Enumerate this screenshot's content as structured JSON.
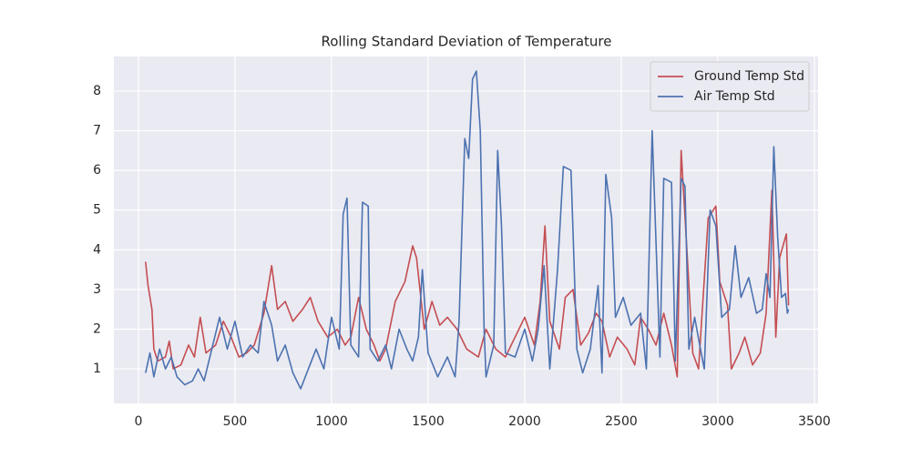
{
  "chart_data": {
    "type": "line",
    "title": "Rolling Standard Deviation of Temperature",
    "xlim": [
      -127,
      3519
    ],
    "xticks": [
      0,
      500,
      1000,
      1500,
      2000,
      2500,
      3000,
      3500
    ],
    "ylim": [
      0.13,
      8.87
    ],
    "yticks": [
      1,
      2,
      3,
      4,
      5,
      6,
      7,
      8
    ],
    "grid": true,
    "legend": "upper right",
    "series": [
      {
        "name": "Ground Temp Std",
        "color": "#c44e52",
        "x": [
          37,
          50,
          70,
          80,
          100,
          140,
          160,
          180,
          220,
          260,
          290,
          320,
          350,
          400,
          440,
          480,
          520,
          560,
          600,
          650,
          690,
          720,
          760,
          800,
          850,
          890,
          930,
          980,
          1030,
          1070,
          1100,
          1140,
          1180,
          1220,
          1250,
          1280,
          1330,
          1380,
          1420,
          1440,
          1480,
          1520,
          1560,
          1600,
          1650,
          1700,
          1760,
          1800,
          1850,
          1900,
          1950,
          2000,
          2050,
          2080,
          2105,
          2130,
          2180,
          2210,
          2250,
          2290,
          2330,
          2370,
          2400,
          2440,
          2480,
          2530,
          2570,
          2600,
          2640,
          2680,
          2720,
          2760,
          2790,
          2810,
          2840,
          2870,
          2900,
          2950,
          2990,
          3010,
          3050,
          3070,
          3110,
          3140,
          3180,
          3220,
          3250,
          3280,
          3300,
          3320,
          3355,
          3366
        ],
        "values": [
          3.7,
          3.1,
          2.5,
          1.5,
          1.2,
          1.3,
          1.7,
          1.0,
          1.1,
          1.6,
          1.3,
          2.3,
          1.4,
          1.6,
          2.2,
          1.8,
          1.3,
          1.4,
          1.6,
          2.4,
          3.6,
          2.5,
          2.7,
          2.2,
          2.5,
          2.8,
          2.2,
          1.8,
          2.0,
          1.6,
          1.8,
          2.8,
          2.0,
          1.6,
          1.2,
          1.5,
          2.7,
          3.2,
          4.1,
          3.8,
          2.0,
          2.7,
          2.1,
          2.3,
          2.0,
          1.5,
          1.3,
          2.0,
          1.5,
          1.3,
          1.8,
          2.3,
          1.6,
          2.7,
          4.6,
          2.2,
          1.5,
          2.8,
          3.0,
          1.6,
          1.9,
          2.4,
          2.2,
          1.3,
          1.8,
          1.5,
          1.1,
          2.3,
          2.0,
          1.6,
          2.4,
          1.6,
          0.8,
          6.5,
          4.0,
          1.4,
          1.0,
          4.8,
          5.1,
          3.2,
          2.6,
          1.0,
          1.4,
          1.8,
          1.1,
          1.4,
          2.4,
          5.5,
          1.8,
          3.8,
          4.4,
          2.6
        ]
      },
      {
        "name": "Air Temp Std",
        "color": "#4c72b0",
        "x": [
          37,
          60,
          80,
          110,
          140,
          170,
          200,
          240,
          280,
          310,
          340,
          380,
          420,
          460,
          500,
          540,
          580,
          620,
          650,
          690,
          720,
          760,
          800,
          840,
          880,
          920,
          960,
          1000,
          1040,
          1060,
          1080,
          1100,
          1140,
          1160,
          1190,
          1200,
          1240,
          1280,
          1310,
          1350,
          1390,
          1420,
          1450,
          1470,
          1500,
          1550,
          1600,
          1640,
          1660,
          1690,
          1710,
          1730,
          1750,
          1770,
          1790,
          1800,
          1840,
          1860,
          1880,
          1900,
          1950,
          2000,
          2040,
          2070,
          2100,
          2130,
          2170,
          2200,
          2240,
          2270,
          2300,
          2340,
          2380,
          2400,
          2420,
          2450,
          2470,
          2510,
          2550,
          2600,
          2630,
          2660,
          2700,
          2720,
          2760,
          2780,
          2810,
          2830,
          2850,
          2880,
          2910,
          2930,
          2960,
          2990,
          3020,
          3060,
          3090,
          3120,
          3160,
          3200,
          3230,
          3250,
          3270,
          3290,
          3310,
          3330,
          3350,
          3360,
          3366
        ],
        "values": [
          0.9,
          1.4,
          0.8,
          1.5,
          1.0,
          1.3,
          0.8,
          0.6,
          0.7,
          1.0,
          0.7,
          1.5,
          2.3,
          1.5,
          2.2,
          1.3,
          1.6,
          1.4,
          2.7,
          2.1,
          1.2,
          1.6,
          0.9,
          0.5,
          1.0,
          1.5,
          1.0,
          2.3,
          1.5,
          4.9,
          5.3,
          1.6,
          1.3,
          5.2,
          5.1,
          1.5,
          1.2,
          1.6,
          1.0,
          2.0,
          1.5,
          1.2,
          1.8,
          3.5,
          1.4,
          0.8,
          1.3,
          0.8,
          2.2,
          6.8,
          6.3,
          8.3,
          8.5,
          7.0,
          2.0,
          0.8,
          1.6,
          6.5,
          4.6,
          1.4,
          1.3,
          2.0,
          1.2,
          2.0,
          3.6,
          1.0,
          3.5,
          6.1,
          6.0,
          1.5,
          0.9,
          1.5,
          3.1,
          0.9,
          5.9,
          4.8,
          2.3,
          2.8,
          2.1,
          2.4,
          1.0,
          7.0,
          1.3,
          5.8,
          5.7,
          1.2,
          5.8,
          5.6,
          1.5,
          2.3,
          1.5,
          1.0,
          5.0,
          4.6,
          2.3,
          2.5,
          4.1,
          2.8,
          3.3,
          2.4,
          2.5,
          3.4,
          2.8,
          6.6,
          4.3,
          2.8,
          2.9,
          2.4,
          2.5
        ]
      }
    ]
  }
}
